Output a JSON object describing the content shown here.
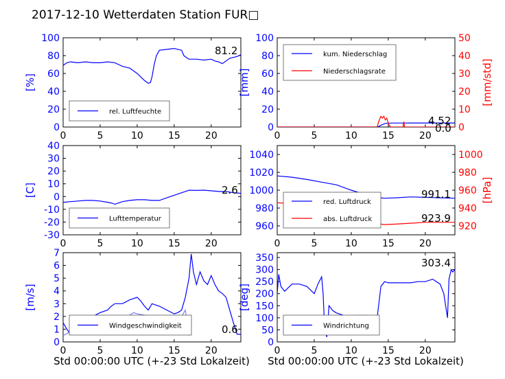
{
  "title": "2017-12-10 Wetterdaten Station FUR□",
  "xlabel": "Std 00:00:00 UTC (+-23 Std Lokalzeit)",
  "colors": {
    "primary": "#0000ff",
    "secondary": "#ff0000",
    "gust": "#7b7bff"
  },
  "chart_data": [
    {
      "type": "line",
      "ylabel": "[%]",
      "xlim": [
        0,
        24
      ],
      "ylim": [
        0,
        100
      ],
      "xticks": [
        0,
        5,
        10,
        15,
        20
      ],
      "yticks": [
        0,
        20,
        40,
        60,
        80,
        100
      ],
      "legend": "lower-left",
      "value_label": "81.2",
      "series": [
        {
          "name": "rel. Luftfeuchte",
          "color": "#0000ff",
          "x": [
            0,
            0.5,
            1,
            2,
            3,
            4,
            5,
            6,
            7,
            7.5,
            8,
            8.5,
            9,
            9.5,
            10,
            10.5,
            11,
            11.5,
            11.8,
            12,
            12.3,
            12.6,
            13,
            14,
            15,
            15.5,
            16,
            16.3,
            16.8,
            17,
            18,
            19,
            20,
            20.5,
            21,
            21.5,
            22,
            22.5,
            23,
            23.5,
            24
          ],
          "y": [
            69,
            72,
            73,
            72,
            73,
            72,
            72,
            73,
            72,
            70,
            68,
            67,
            66,
            63,
            60,
            56,
            52,
            49,
            50,
            56,
            70,
            80,
            86,
            87,
            88,
            87,
            86,
            80,
            77,
            76,
            76,
            75,
            76,
            74,
            73,
            71,
            74,
            77,
            78,
            79,
            81
          ]
        }
      ]
    },
    {
      "type": "line",
      "ylabel": "[mm]",
      "ylabel2": "[mm/std]",
      "xlim": [
        0,
        24
      ],
      "ylim": [
        0,
        100
      ],
      "ylim2": [
        0,
        50
      ],
      "xticks": [
        0,
        5,
        10,
        15,
        20
      ],
      "yticks": [
        0,
        20,
        40,
        60,
        80,
        100
      ],
      "yticks2": [
        0,
        10,
        20,
        30,
        40,
        50
      ],
      "legend": "upper-left",
      "value_label": "4.52",
      "value_label2": "0.0",
      "series": [
        {
          "name": "kum. Niederschlag",
          "color": "#0000ff",
          "axis": "left",
          "x": [
            0,
            13.5,
            13.8,
            14,
            14.3,
            14.6,
            15,
            16,
            17,
            18,
            20,
            22,
            24
          ],
          "y": [
            0,
            0,
            1,
            2,
            3,
            4,
            4.4,
            4.5,
            4.5,
            4.52,
            4.52,
            4.52,
            4.52
          ]
        },
        {
          "name": "Niederschlagsrate",
          "color": "#ff0000",
          "axis": "right",
          "x": [
            0,
            13.5,
            13.7,
            13.9,
            14,
            14.2,
            14.4,
            14.6,
            14.8,
            15,
            15.3,
            16,
            17,
            17.1,
            17.2,
            18,
            24
          ],
          "y": [
            0,
            0,
            3,
            5,
            6,
            5,
            6,
            4,
            5,
            2,
            0,
            0,
            0,
            3,
            0,
            0,
            0
          ]
        }
      ]
    },
    {
      "type": "line",
      "ylabel": "[C]",
      "xlim": [
        0,
        24
      ],
      "ylim": [
        -30,
        40
      ],
      "xticks": [
        0,
        5,
        10,
        15,
        20
      ],
      "yticks": [
        -30,
        -20,
        -10,
        0,
        10,
        20,
        30,
        40
      ],
      "legend": "lower-left",
      "value_label": "2.6",
      "series": [
        {
          "name": "Lufttemperatur",
          "color": "#0000ff",
          "x": [
            0,
            1,
            2,
            3,
            4,
            5,
            6,
            6.5,
            7,
            7.5,
            8,
            9,
            10,
            11,
            12,
            13,
            14,
            15,
            16,
            16.5,
            17,
            18,
            19,
            20,
            21,
            22,
            23,
            24
          ],
          "y": [
            -4.5,
            -4,
            -3.5,
            -3,
            -3,
            -3.5,
            -4.5,
            -5,
            -6,
            -5,
            -4,
            -3,
            -2.5,
            -2.5,
            -3,
            -3,
            -1,
            1,
            3,
            4,
            5,
            4.8,
            5,
            4.5,
            4,
            4,
            3,
            2.6
          ]
        }
      ]
    },
    {
      "type": "line",
      "ylabel2": "[hPa]",
      "xlim": [
        0,
        24
      ],
      "ylim": [
        950,
        1050
      ],
      "ylim2": [
        910,
        1010
      ],
      "xticks": [
        0,
        5,
        10,
        15,
        20
      ],
      "yticks": [
        960,
        980,
        1000,
        1020,
        1040
      ],
      "yticks2": [
        920,
        940,
        960,
        980,
        1000
      ],
      "legend": "lower-left",
      "value_label": "991.1",
      "value_label2": "923.9",
      "series": [
        {
          "name": "red. Luftdruck",
          "color": "#0000ff",
          "axis": "left",
          "x": [
            0,
            2,
            4,
            6,
            8,
            10,
            12,
            14,
            14.5,
            16,
            18,
            20,
            22,
            24
          ],
          "y": [
            1016,
            1014.5,
            1012,
            1009,
            1006,
            1000,
            995,
            991.5,
            991,
            991.5,
            992.5,
            992,
            991.5,
            991
          ]
        },
        {
          "name": "abs. Luftdruck",
          "color": "#ff0000",
          "axis": "right",
          "x": [
            0,
            2,
            4,
            6,
            8,
            10,
            12,
            14,
            14.5,
            16,
            18,
            20,
            22,
            24
          ],
          "y": [
            946,
            944.5,
            941.5,
            938,
            936,
            932,
            927.5,
            922,
            921.5,
            922,
            923,
            924,
            924,
            924
          ]
        }
      ]
    },
    {
      "type": "line",
      "ylabel": "[m/s]",
      "xlim": [
        0,
        24
      ],
      "ylim": [
        0,
        7
      ],
      "xticks": [
        0,
        5,
        10,
        15,
        20
      ],
      "yticks": [
        0,
        1,
        2,
        3,
        4,
        5,
        6,
        7
      ],
      "legend": "lower-left",
      "value_label": "0.6",
      "series": [
        {
          "name": "Windgeschwindigkeit",
          "color": "#0000ff",
          "x": [
            0,
            0.5,
            1,
            1.5,
            2,
            3,
            4,
            5,
            6,
            6.5,
            7,
            8,
            9,
            10,
            10.5,
            11,
            11.5,
            12,
            13,
            14,
            15,
            15.5,
            16,
            16.5,
            17,
            17.3,
            17.6,
            18,
            18.5,
            19,
            19.5,
            20,
            20.5,
            21,
            21.5,
            22,
            22.5,
            23,
            23.5,
            24
          ],
          "y": [
            1.5,
            1.0,
            0.6,
            1.0,
            1.3,
            1.6,
            2.0,
            2.3,
            2.5,
            2.8,
            3.0,
            3.0,
            3.3,
            3.5,
            3.2,
            2.8,
            2.5,
            3.0,
            2.8,
            2.5,
            2.2,
            2.3,
            2.5,
            3.5,
            5.0,
            6.9,
            5.5,
            4.5,
            5.5,
            4.8,
            4.5,
            5.2,
            4.5,
            4.0,
            3.8,
            3.5,
            2.5,
            1.5,
            0.6,
            0.6
          ]
        },
        {
          "name": "",
          "color": "#7b7bff",
          "x": [
            0,
            1,
            2,
            3,
            4,
            5,
            6,
            6.3,
            6.5,
            7,
            8,
            9,
            9.5,
            10,
            11,
            12,
            13,
            14,
            15,
            16,
            16.5,
            17
          ],
          "y": [
            0.5,
            0.8,
            1.0,
            1.1,
            1.3,
            1.4,
            1.6,
            1.8,
            1.6,
            1.9,
            2.0,
            2.1,
            2.3,
            2.2,
            2.1,
            2.0,
            1.9,
            1.8,
            1.8,
            2.0,
            2.5,
            0.5
          ]
        }
      ]
    },
    {
      "type": "line",
      "ylabel": "[deg]",
      "xlim": [
        0,
        24
      ],
      "ylim": [
        0,
        370
      ],
      "xticks": [
        0,
        5,
        10,
        15,
        20
      ],
      "yticks": [
        0,
        50,
        100,
        150,
        200,
        250,
        300,
        350
      ],
      "legend": "lower-left",
      "value_label": "303.4",
      "series": [
        {
          "name": "Windrichtung",
          "color": "#0000ff",
          "x": [
            0,
            0.2,
            0.5,
            1,
            2,
            3,
            4,
            5,
            5.5,
            6,
            6.2,
            6.4,
            6.7,
            7,
            7.5,
            8,
            9,
            10,
            11,
            12,
            13,
            13.5,
            14,
            14.5,
            15,
            16,
            17,
            18,
            19,
            20,
            21,
            21.5,
            22,
            22.5,
            23,
            23.2,
            23.5,
            23.7,
            24
          ],
          "y": [
            200,
            280,
            230,
            210,
            240,
            240,
            230,
            200,
            240,
            270,
            200,
            60,
            20,
            150,
            130,
            120,
            110,
            100,
            110,
            110,
            100,
            100,
            230,
            250,
            245,
            245,
            245,
            245,
            250,
            250,
            260,
            250,
            240,
            200,
            100,
            260,
            300,
            290,
            300
          ]
        }
      ]
    }
  ]
}
